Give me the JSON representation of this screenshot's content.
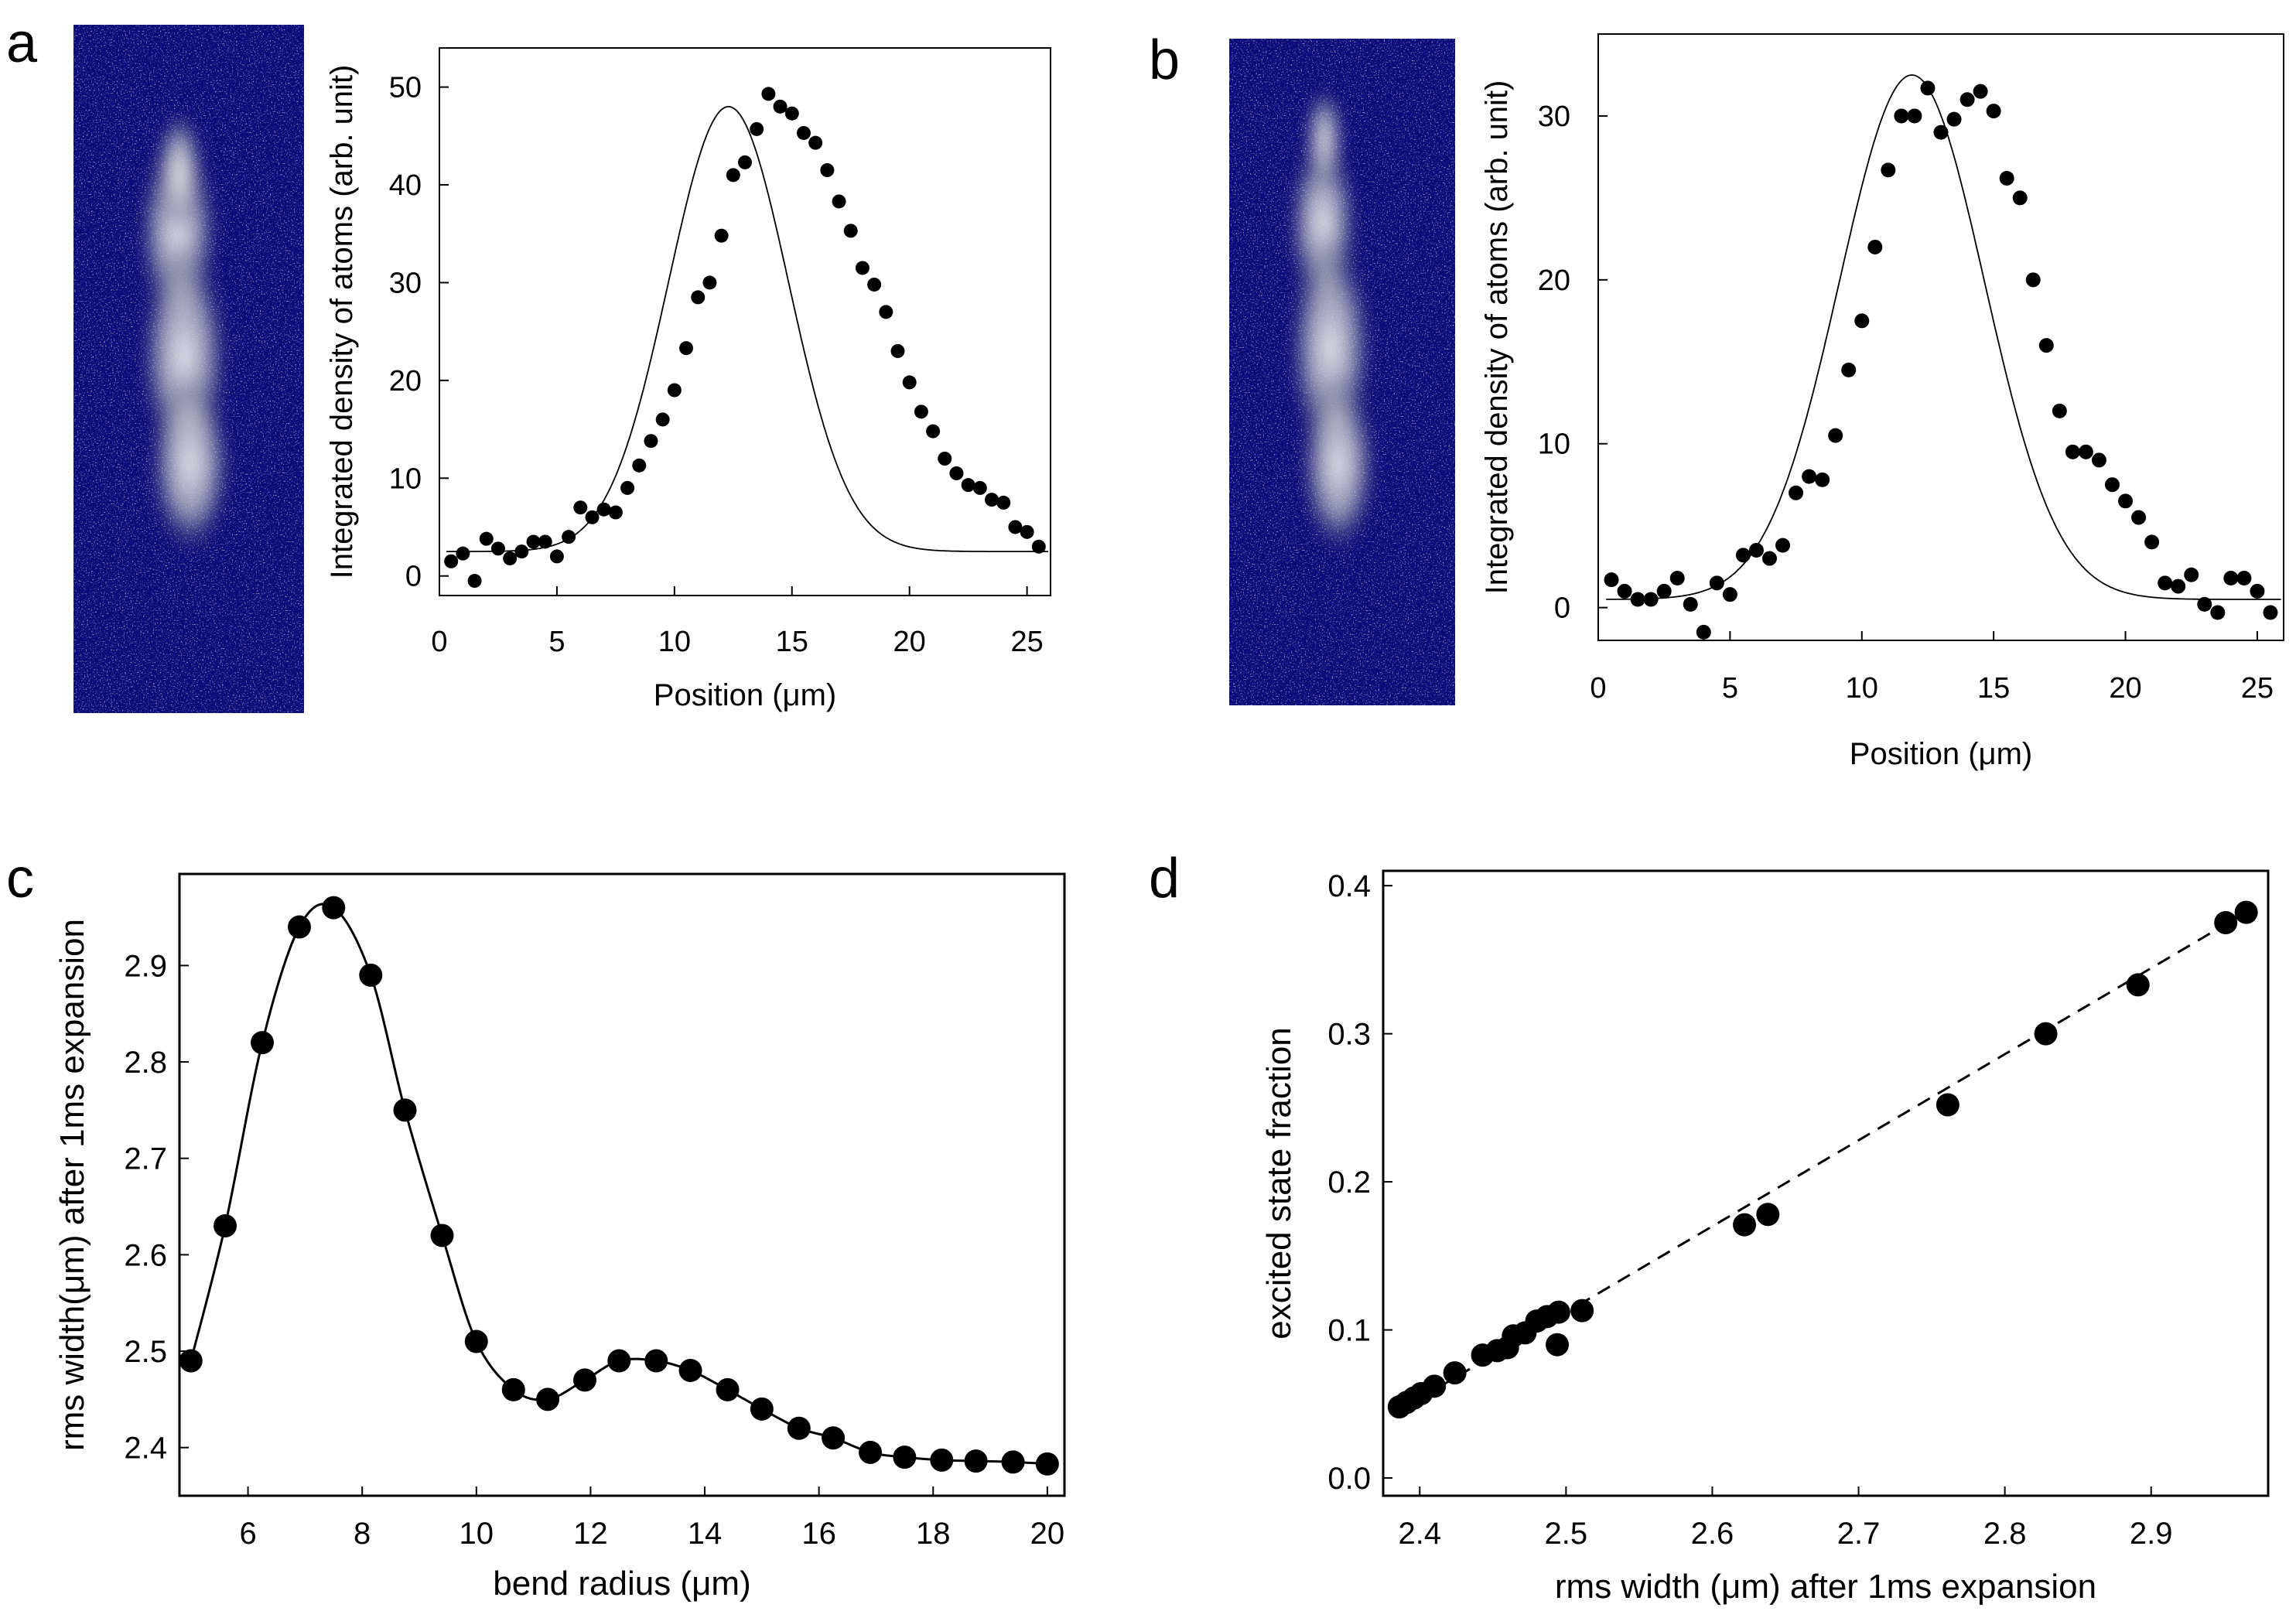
{
  "panels": {
    "a": "a",
    "b": "b",
    "c": "c",
    "d": "d"
  },
  "colors": {
    "image_background": "#0b0b7a",
    "cloud": "#e8e8e8",
    "marker": "#000000",
    "line": "#000000"
  },
  "chart_data": [
    {
      "id": "a",
      "type": "scatter",
      "xlabel": "Position (μm)",
      "ylabel": "Integrated density of atoms (arb. unit)",
      "xlim": [
        0,
        26
      ],
      "ylim": [
        -2,
        54
      ],
      "xticks": [
        "0",
        "5",
        "10",
        "15",
        "20",
        "25"
      ],
      "yticks": [
        "0",
        "10",
        "20",
        "30",
        "40",
        "50"
      ],
      "fit": {
        "type": "gaussian",
        "amplitude": 45.5,
        "center": 12.3,
        "sigma": 2.55,
        "offset": 2.5
      },
      "x": [
        0.5,
        1.0,
        1.5,
        2.0,
        2.5,
        3.0,
        3.5,
        4.0,
        4.5,
        5.0,
        5.5,
        6.0,
        6.5,
        7.0,
        7.5,
        8.0,
        8.5,
        9.0,
        9.5,
        10.0,
        10.5,
        11.0,
        11.5,
        12.0,
        12.5,
        13.0,
        13.5,
        14.0,
        14.5,
        15.0,
        15.5,
        16.0,
        16.5,
        17.0,
        17.5,
        18.0,
        18.5,
        19.0,
        19.5,
        20.0,
        20.5,
        21.0,
        21.5,
        22.0,
        22.5,
        23.0,
        23.5,
        24.0,
        24.5,
        25.0,
        25.5
      ],
      "y": [
        1.5,
        2.3,
        -0.5,
        3.8,
        2.8,
        1.8,
        2.5,
        3.5,
        3.5,
        2.0,
        4.0,
        7.0,
        6.0,
        6.8,
        6.5,
        9.0,
        11.3,
        13.8,
        16.0,
        19.0,
        23.3,
        28.5,
        30.0,
        34.8,
        41.0,
        42.3,
        45.7,
        49.3,
        48.0,
        47.3,
        45.3,
        44.3,
        41.5,
        38.3,
        35.3,
        31.5,
        29.8,
        27.0,
        23.0,
        19.8,
        16.8,
        14.8,
        12.0,
        10.5,
        9.3,
        9.0,
        7.8,
        7.5,
        5.0,
        4.5,
        3.0
      ]
    },
    {
      "id": "b",
      "type": "scatter",
      "xlabel": "Position (μm)",
      "ylabel": "Integrated density of atoms (arb. unit)",
      "xlim": [
        0,
        26
      ],
      "ylim": [
        -2,
        35
      ],
      "xticks": [
        "0",
        "5",
        "10",
        "15",
        "20",
        "25"
      ],
      "yticks": [
        "0",
        "10",
        "20",
        "30"
      ],
      "fit": {
        "type": "gaussian",
        "amplitude": 32.0,
        "center": 11.9,
        "sigma": 2.75,
        "offset": 0.5
      },
      "x": [
        0.5,
        1.0,
        1.5,
        2.0,
        2.5,
        3.0,
        3.5,
        4.0,
        4.5,
        5.0,
        5.5,
        6.0,
        6.5,
        7.0,
        7.5,
        8.0,
        8.5,
        9.0,
        9.5,
        10.0,
        10.5,
        11.0,
        11.5,
        12.0,
        12.5,
        13.0,
        13.5,
        14.0,
        14.5,
        15.0,
        15.5,
        16.0,
        16.5,
        17.0,
        17.5,
        18.0,
        18.5,
        19.0,
        19.5,
        20.0,
        20.5,
        21.0,
        21.5,
        22.0,
        22.5,
        23.0,
        23.5,
        24.0,
        24.5,
        25.0,
        25.5
      ],
      "y": [
        1.7,
        1.0,
        0.5,
        0.5,
        1.0,
        1.8,
        0.2,
        -1.5,
        1.5,
        0.8,
        3.2,
        3.5,
        3.0,
        3.8,
        7.0,
        8.0,
        7.8,
        10.5,
        14.5,
        17.5,
        22.0,
        26.7,
        30.0,
        30.0,
        31.7,
        29.0,
        29.8,
        31.0,
        31.5,
        30.3,
        26.2,
        25.0,
        20.0,
        16.0,
        12.0,
        9.5,
        9.5,
        9.0,
        7.5,
        6.5,
        5.5,
        4.0,
        1.5,
        1.3,
        2.0,
        0.2,
        -0.3,
        1.8,
        1.8,
        1.0,
        -0.3
      ]
    },
    {
      "id": "c",
      "type": "line",
      "xlabel": "bend radius (μm)",
      "ylabel": "rms width(μm) after 1ms expansion",
      "xlim": [
        4.8,
        20.3
      ],
      "ylim": [
        2.35,
        2.995
      ],
      "xticks": [
        "6",
        "8",
        "10",
        "12",
        "14",
        "16",
        "18",
        "20"
      ],
      "yticks": [
        "2.4",
        "2.5",
        "2.6",
        "2.7",
        "2.8",
        "2.9"
      ],
      "x": [
        5.0,
        5.6,
        6.25,
        6.9,
        7.5,
        8.15,
        8.75,
        9.4,
        10.0,
        10.65,
        11.25,
        11.9,
        12.5,
        13.15,
        13.75,
        14.4,
        15.0,
        15.65,
        16.25,
        16.9,
        17.5,
        18.15,
        18.75,
        19.4,
        20.0
      ],
      "y": [
        2.49,
        2.63,
        2.82,
        2.94,
        2.96,
        2.89,
        2.75,
        2.62,
        2.51,
        2.46,
        2.45,
        2.47,
        2.49,
        2.49,
        2.48,
        2.46,
        2.44,
        2.42,
        2.41,
        2.395,
        2.39,
        2.387,
        2.386,
        2.385,
        2.383
      ]
    },
    {
      "id": "d",
      "type": "scatter",
      "xlabel": "rms width (μm) after 1ms expansion",
      "ylabel": "excited state fraction",
      "xlim": [
        2.375,
        2.98
      ],
      "ylim": [
        -0.012,
        0.41
      ],
      "xticks": [
        "2.4",
        "2.5",
        "2.6",
        "2.7",
        "2.8",
        "2.9"
      ],
      "yticks": [
        "0.0",
        "0.1",
        "0.2",
        "0.3",
        "0.4"
      ],
      "fit": {
        "type": "linear",
        "x0": 2.385,
        "y0": 0.045,
        "x1": 2.97,
        "y1": 0.385
      },
      "x": [
        2.386,
        2.391,
        2.396,
        2.401,
        2.41,
        2.424,
        2.443,
        2.453,
        2.46,
        2.464,
        2.472,
        2.48,
        2.487,
        2.494,
        2.495,
        2.511,
        2.622,
        2.638,
        2.761,
        2.828,
        2.891,
        2.951,
        2.965
      ],
      "y": [
        0.048,
        0.051,
        0.054,
        0.057,
        0.062,
        0.071,
        0.083,
        0.086,
        0.088,
        0.096,
        0.098,
        0.106,
        0.109,
        0.09,
        0.112,
        0.113,
        0.171,
        0.178,
        0.252,
        0.3,
        0.333,
        0.375,
        0.382
      ]
    }
  ]
}
